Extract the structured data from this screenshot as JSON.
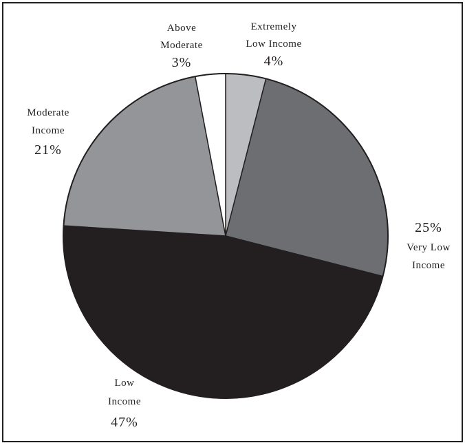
{
  "chart_data": {
    "type": "pie",
    "title": "",
    "slices": [
      {
        "name_lines": [
          "Extremely",
          "Low Income"
        ],
        "value": 4,
        "value_label": "4%",
        "color": "#bcbdc0"
      },
      {
        "name_lines": [
          "Very Low",
          "Income"
        ],
        "value": 25,
        "value_label": "25%",
        "color": "#6d6e71"
      },
      {
        "name_lines": [
          "Low",
          "Income"
        ],
        "value": 47,
        "value_label": "47%",
        "color": "#231f20"
      },
      {
        "name_lines": [
          "Moderate",
          "Income"
        ],
        "value": 21,
        "value_label": "21%",
        "color": "#939598"
      },
      {
        "name_lines": [
          "Above",
          "Moderate"
        ],
        "value": 3,
        "value_label": "3%",
        "color": "#ffffff"
      }
    ],
    "start_position": "12 o'clock",
    "direction": "clockwise",
    "slice_stroke_color": "#231f20",
    "legend": "none"
  }
}
